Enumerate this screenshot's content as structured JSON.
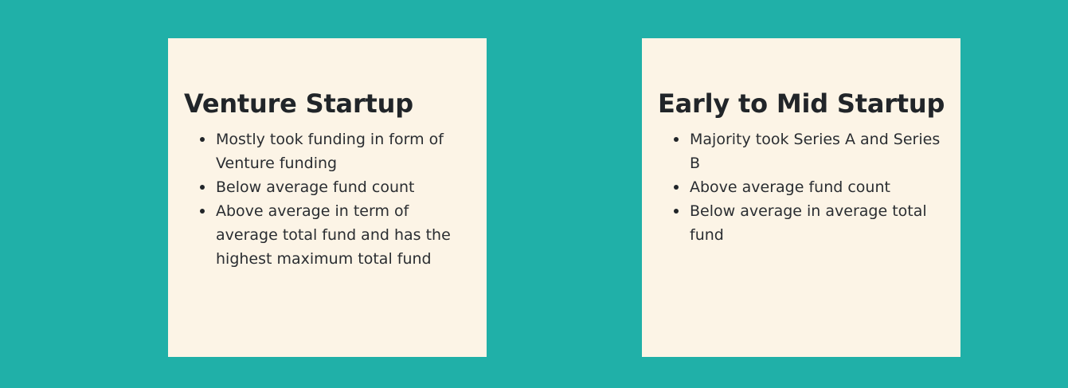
{
  "cards": [
    {
      "title": "Venture Startup",
      "items": [
        "Mostly took funding in form of Venture funding",
        "Below average fund count",
        "Above average in term of average total fund and has the highest maximum total fund"
      ]
    },
    {
      "title": "Early to Mid Startup",
      "items": [
        "Majority took Series A and Series B",
        "Above average fund count",
        "Below average in average total fund"
      ]
    }
  ],
  "colors": {
    "background": "#20b0a8",
    "card": "#fcf4e6",
    "text": "#212529"
  }
}
